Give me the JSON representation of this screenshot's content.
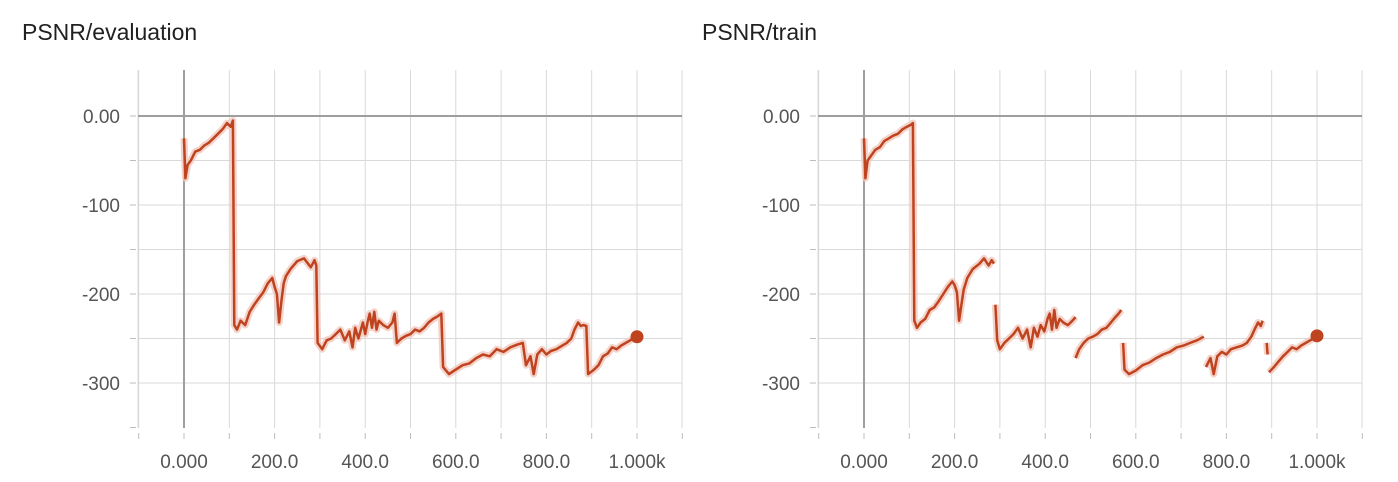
{
  "chart_data": [
    {
      "type": "line",
      "title": "PSNR/evaluation",
      "xlabel": "",
      "ylabel": "",
      "xlim": [
        -100,
        1100
      ],
      "ylim": [
        -355,
        35
      ],
      "x_ticks": [
        0,
        200,
        400,
        600,
        800,
        1000
      ],
      "x_tick_labels": [
        "0.000",
        "200.0",
        "400.0",
        "600.0",
        "800.0",
        "1.000k"
      ],
      "y_ticks": [
        0,
        -100,
        -200,
        -300
      ],
      "y_tick_labels": [
        "0.00",
        "-100",
        "-200",
        "-300"
      ],
      "grid": true,
      "colors": {
        "line": "#c0431f",
        "raw": "#f0c8bd",
        "grid": "#d9d9d9",
        "axis": "#9e9e9e"
      },
      "series": [
        {
          "values": [
            [
              0,
              -25
            ],
            [
              3,
              -70
            ],
            [
              8,
              -55
            ],
            [
              15,
              -50
            ],
            [
              25,
              -40
            ],
            [
              35,
              -38
            ],
            [
              45,
              -33
            ],
            [
              55,
              -30
            ],
            [
              65,
              -25
            ],
            [
              75,
              -20
            ],
            [
              85,
              -15
            ],
            [
              95,
              -8
            ],
            [
              103,
              -12
            ],
            [
              108,
              -5
            ],
            [
              111,
              -235
            ],
            [
              117,
              -240
            ],
            [
              125,
              -230
            ],
            [
              135,
              -235
            ],
            [
              145,
              -220
            ],
            [
              155,
              -212
            ],
            [
              165,
              -205
            ],
            [
              175,
              -198
            ],
            [
              185,
              -188
            ],
            [
              195,
              -182
            ],
            [
              200,
              -192
            ],
            [
              205,
              -200
            ],
            [
              210,
              -232
            ],
            [
              215,
              -208
            ],
            [
              220,
              -188
            ],
            [
              225,
              -180
            ],
            [
              235,
              -172
            ],
            [
              250,
              -163
            ],
            [
              265,
              -160
            ],
            [
              280,
              -170
            ],
            [
              288,
              -162
            ],
            [
              292,
              -168
            ],
            [
              295,
              -255
            ],
            [
              305,
              -262
            ],
            [
              315,
              -252
            ],
            [
              325,
              -250
            ],
            [
              335,
              -245
            ],
            [
              345,
              -240
            ],
            [
              355,
              -252
            ],
            [
              365,
              -242
            ],
            [
              372,
              -260
            ],
            [
              378,
              -238
            ],
            [
              385,
              -250
            ],
            [
              395,
              -232
            ],
            [
              400,
              -245
            ],
            [
              405,
              -232
            ],
            [
              410,
              -222
            ],
            [
              415,
              -238
            ],
            [
              420,
              -220
            ],
            [
              425,
              -240
            ],
            [
              430,
              -230
            ],
            [
              440,
              -235
            ],
            [
              450,
              -238
            ],
            [
              460,
              -232
            ],
            [
              465,
              -222
            ],
            [
              470,
              -255
            ],
            [
              480,
              -250
            ],
            [
              490,
              -247
            ],
            [
              500,
              -245
            ],
            [
              510,
              -240
            ],
            [
              520,
              -242
            ],
            [
              530,
              -238
            ],
            [
              540,
              -232
            ],
            [
              550,
              -228
            ],
            [
              560,
              -225
            ],
            [
              568,
              -222
            ],
            [
              572,
              -282
            ],
            [
              585,
              -290
            ],
            [
              600,
              -285
            ],
            [
              615,
              -280
            ],
            [
              630,
              -278
            ],
            [
              645,
              -272
            ],
            [
              660,
              -268
            ],
            [
              675,
              -270
            ],
            [
              690,
              -262
            ],
            [
              705,
              -265
            ],
            [
              720,
              -260
            ],
            [
              735,
              -257
            ],
            [
              748,
              -255
            ],
            [
              755,
              -280
            ],
            [
              765,
              -270
            ],
            [
              772,
              -290
            ],
            [
              780,
              -268
            ],
            [
              790,
              -262
            ],
            [
              800,
              -268
            ],
            [
              810,
              -264
            ],
            [
              822,
              -262
            ],
            [
              835,
              -258
            ],
            [
              845,
              -255
            ],
            [
              855,
              -250
            ],
            [
              862,
              -240
            ],
            [
              870,
              -232
            ],
            [
              876,
              -236
            ],
            [
              882,
              -235
            ],
            [
              888,
              -236
            ],
            [
              892,
              -290
            ],
            [
              905,
              -285
            ],
            [
              915,
              -280
            ],
            [
              925,
              -270
            ],
            [
              935,
              -267
            ],
            [
              945,
              -260
            ],
            [
              955,
              -262
            ],
            [
              965,
              -258
            ],
            [
              975,
              -255
            ],
            [
              985,
              -252
            ],
            [
              993,
              -250
            ],
            [
              1000,
              -248
            ]
          ]
        }
      ]
    },
    {
      "type": "line",
      "title": "PSNR/train",
      "xlabel": "",
      "ylabel": "",
      "xlim": [
        -100,
        1100
      ],
      "ylim": [
        -355,
        35
      ],
      "x_ticks": [
        0,
        200,
        400,
        600,
        800,
        1000
      ],
      "x_tick_labels": [
        "0.000",
        "200.0",
        "400.0",
        "600.0",
        "800.0",
        "1.000k"
      ],
      "y_ticks": [
        0,
        -100,
        -200,
        -300
      ],
      "y_tick_labels": [
        "0.00",
        "-100",
        "-200",
        "-300"
      ],
      "grid": true,
      "colors": {
        "line": "#c0431f",
        "raw": "#f0c8bd",
        "grid": "#d9d9d9",
        "axis": "#9e9e9e"
      },
      "series": [
        {
          "segments": [
            [
              [
                0,
                -25
              ],
              [
                3,
                -70
              ],
              [
                8,
                -50
              ],
              [
                15,
                -45
              ],
              [
                25,
                -38
              ],
              [
                35,
                -35
              ],
              [
                45,
                -28
              ],
              [
                55,
                -25
              ],
              [
                65,
                -22
              ],
              [
                75,
                -20
              ],
              [
                85,
                -15
              ],
              [
                95,
                -12
              ],
              [
                103,
                -10
              ],
              [
                108,
                -8
              ],
              [
                111,
                -230
              ],
              [
                117,
                -238
              ],
              [
                125,
                -232
              ],
              [
                135,
                -228
              ],
              [
                145,
                -218
              ],
              [
                155,
                -215
              ],
              [
                165,
                -208
              ],
              [
                175,
                -200
              ],
              [
                185,
                -192
              ],
              [
                195,
                -186
              ],
              [
                200,
                -190
              ],
              [
                205,
                -198
              ],
              [
                210,
                -230
              ],
              [
                215,
                -212
              ],
              [
                220,
                -195
              ],
              [
                228,
                -182
              ],
              [
                240,
                -172
              ],
              [
                255,
                -166
              ],
              [
                265,
                -160
              ],
              [
                275,
                -168
              ],
              [
                282,
                -162
              ],
              [
                287,
                -166
              ]
            ],
            [
              [
                290,
                -212
              ],
              [
                294,
                -252
              ],
              [
                300,
                -262
              ],
              [
                310,
                -255
              ],
              [
                320,
                -250
              ],
              [
                330,
                -245
              ],
              [
                340,
                -238
              ],
              [
                350,
                -250
              ],
              [
                360,
                -240
              ],
              [
                368,
                -260
              ],
              [
                375,
                -238
              ],
              [
                383,
                -248
              ],
              [
                390,
                -235
              ],
              [
                398,
                -242
              ],
              [
                405,
                -228
              ],
              [
                410,
                -222
              ],
              [
                415,
                -240
              ],
              [
                420,
                -218
              ],
              [
                425,
                -238
              ],
              [
                432,
                -228
              ],
              [
                440,
                -232
              ],
              [
                450,
                -235
              ],
              [
                460,
                -230
              ],
              [
                467,
                -226
              ]
            ],
            [
              [
                467,
                -272
              ],
              [
                475,
                -262
              ],
              [
                485,
                -255
              ],
              [
                495,
                -250
              ],
              [
                505,
                -248
              ],
              [
                515,
                -245
              ],
              [
                525,
                -240
              ],
              [
                535,
                -238
              ],
              [
                545,
                -232
              ],
              [
                555,
                -226
              ],
              [
                562,
                -222
              ],
              [
                568,
                -218
              ]
            ],
            [
              [
                572,
                -255
              ],
              [
                575,
                -285
              ],
              [
                585,
                -290
              ],
              [
                600,
                -286
              ],
              [
                615,
                -280
              ],
              [
                630,
                -277
              ],
              [
                645,
                -272
              ],
              [
                660,
                -268
              ],
              [
                675,
                -265
              ],
              [
                690,
                -260
              ],
              [
                705,
                -258
              ],
              [
                720,
                -255
              ],
              [
                735,
                -252
              ],
              [
                750,
                -248
              ]
            ],
            [
              [
                755,
                -282
              ],
              [
                765,
                -272
              ],
              [
                772,
                -290
              ],
              [
                780,
                -270
              ],
              [
                790,
                -265
              ],
              [
                800,
                -268
              ],
              [
                810,
                -262
              ],
              [
                822,
                -260
              ],
              [
                835,
                -258
              ],
              [
                845,
                -255
              ],
              [
                855,
                -248
              ],
              [
                862,
                -240
              ],
              [
                870,
                -232
              ],
              [
                876,
                -236
              ],
              [
                880,
                -230
              ]
            ],
            [
              [
                889,
                -255
              ],
              [
                891,
                -268
              ]
            ],
            [
              [
                894,
                -288
              ],
              [
                905,
                -282
              ],
              [
                915,
                -276
              ],
              [
                925,
                -270
              ],
              [
                935,
                -265
              ],
              [
                945,
                -260
              ],
              [
                955,
                -262
              ],
              [
                965,
                -258
              ],
              [
                975,
                -255
              ],
              [
                985,
                -252
              ],
              [
                993,
                -250
              ],
              [
                1000,
                -247
              ]
            ]
          ]
        }
      ]
    }
  ],
  "panels": [
    {
      "title": "PSNR/evaluation"
    },
    {
      "title": "PSNR/train"
    }
  ]
}
